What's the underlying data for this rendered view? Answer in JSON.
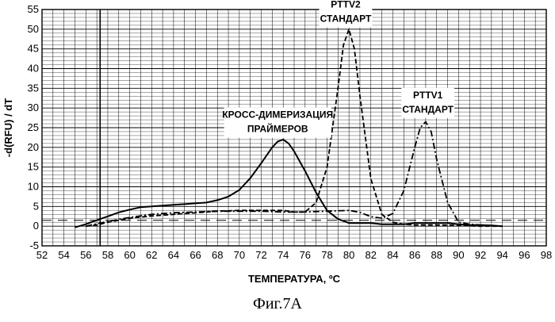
{
  "chart_data": {
    "type": "line",
    "title": "",
    "xlabel": "ТЕМПЕРАТУРА, ºC",
    "ylabel": "-d(RFU) / dT",
    "xlim": [
      52,
      98
    ],
    "ylim": [
      -5,
      55
    ],
    "x_ticks": [
      52,
      54,
      56,
      58,
      60,
      62,
      64,
      66,
      68,
      70,
      72,
      74,
      76,
      78,
      80,
      82,
      84,
      86,
      88,
      90,
      92,
      94,
      96,
      98
    ],
    "y_ticks": [
      -5,
      0,
      5,
      10,
      15,
      20,
      25,
      30,
      35,
      40,
      45,
      50,
      55
    ],
    "grid": true,
    "threshold": 1.5,
    "vertical_marker": 57.3,
    "series": [
      {
        "name": "",
        "style": "solid",
        "x": [
          55,
          56,
          57,
          58,
          59,
          60,
          61,
          62,
          63,
          64,
          65,
          66,
          67,
          68,
          69,
          70,
          71,
          72,
          73,
          73.5,
          74,
          74.5,
          75,
          76,
          77,
          78,
          79,
          80,
          81,
          82,
          83,
          84,
          85,
          86,
          87,
          88,
          89,
          90,
          91,
          92,
          93,
          94
        ],
        "y": [
          -0.3,
          0.5,
          1.5,
          2.5,
          3.5,
          4.2,
          4.8,
          5.0,
          5.2,
          5.4,
          5.6,
          5.8,
          6.0,
          6.6,
          7.5,
          9.2,
          12.2,
          16.0,
          20.0,
          21.5,
          22.0,
          21.0,
          19.0,
          14.0,
          8.5,
          4.0,
          1.8,
          0.8,
          0.8,
          0.8,
          0.5,
          0.5,
          0.5,
          0.8,
          0.8,
          0.8,
          0.8,
          0.5,
          0.3,
          0.3,
          0.2,
          0.0
        ]
      },
      {
        "name": "",
        "style": "dashed",
        "x": [
          56,
          57,
          58,
          60,
          62,
          64,
          66,
          68,
          70,
          72,
          74,
          75,
          76,
          77,
          78,
          79,
          79.5,
          80,
          80.5,
          81,
          82,
          83,
          84,
          85,
          86,
          88,
          90,
          92,
          94
        ],
        "y": [
          0.0,
          0.3,
          1.0,
          2.0,
          2.6,
          3.0,
          3.4,
          3.8,
          4.0,
          4.0,
          4.0,
          3.6,
          3.6,
          6.0,
          15.0,
          35.0,
          46.0,
          50.0,
          45.0,
          33.0,
          12.0,
          3.0,
          1.0,
          0.5,
          0.3,
          0.3,
          0.2,
          0.0,
          0.0
        ]
      },
      {
        "name": "",
        "style": "dash-dot",
        "x": [
          56,
          58,
          60,
          62,
          64,
          66,
          68,
          70,
          72,
          74,
          76,
          78,
          80,
          81,
          82,
          83,
          84,
          85,
          86,
          86.5,
          87,
          87.5,
          88,
          89,
          90,
          91,
          92,
          94
        ],
        "y": [
          0.0,
          1.2,
          2.2,
          3.0,
          3.4,
          3.6,
          3.8,
          3.8,
          3.8,
          3.6,
          3.6,
          3.8,
          4.0,
          3.5,
          2.4,
          2.0,
          3.2,
          9.0,
          20.0,
          25.0,
          26.5,
          24.0,
          17.0,
          6.0,
          1.0,
          0.5,
          0.3,
          0.0
        ]
      }
    ],
    "annotations": [
      {
        "lines": [
          "КРОСС-ДИМЕРИЗАЦИЯ",
          "ПРАЙМЕРОВ"
        ],
        "x": 73.5,
        "y": 27.5
      },
      {
        "lines": [
          "PTTV2",
          "СТАНДАРТ"
        ],
        "x": 79.7,
        "y": 55.5
      },
      {
        "lines": [
          "PTTV1",
          "СТАНДАРТ"
        ],
        "x": 87.2,
        "y": 32.5
      }
    ]
  },
  "caption": "Фиг.7А"
}
